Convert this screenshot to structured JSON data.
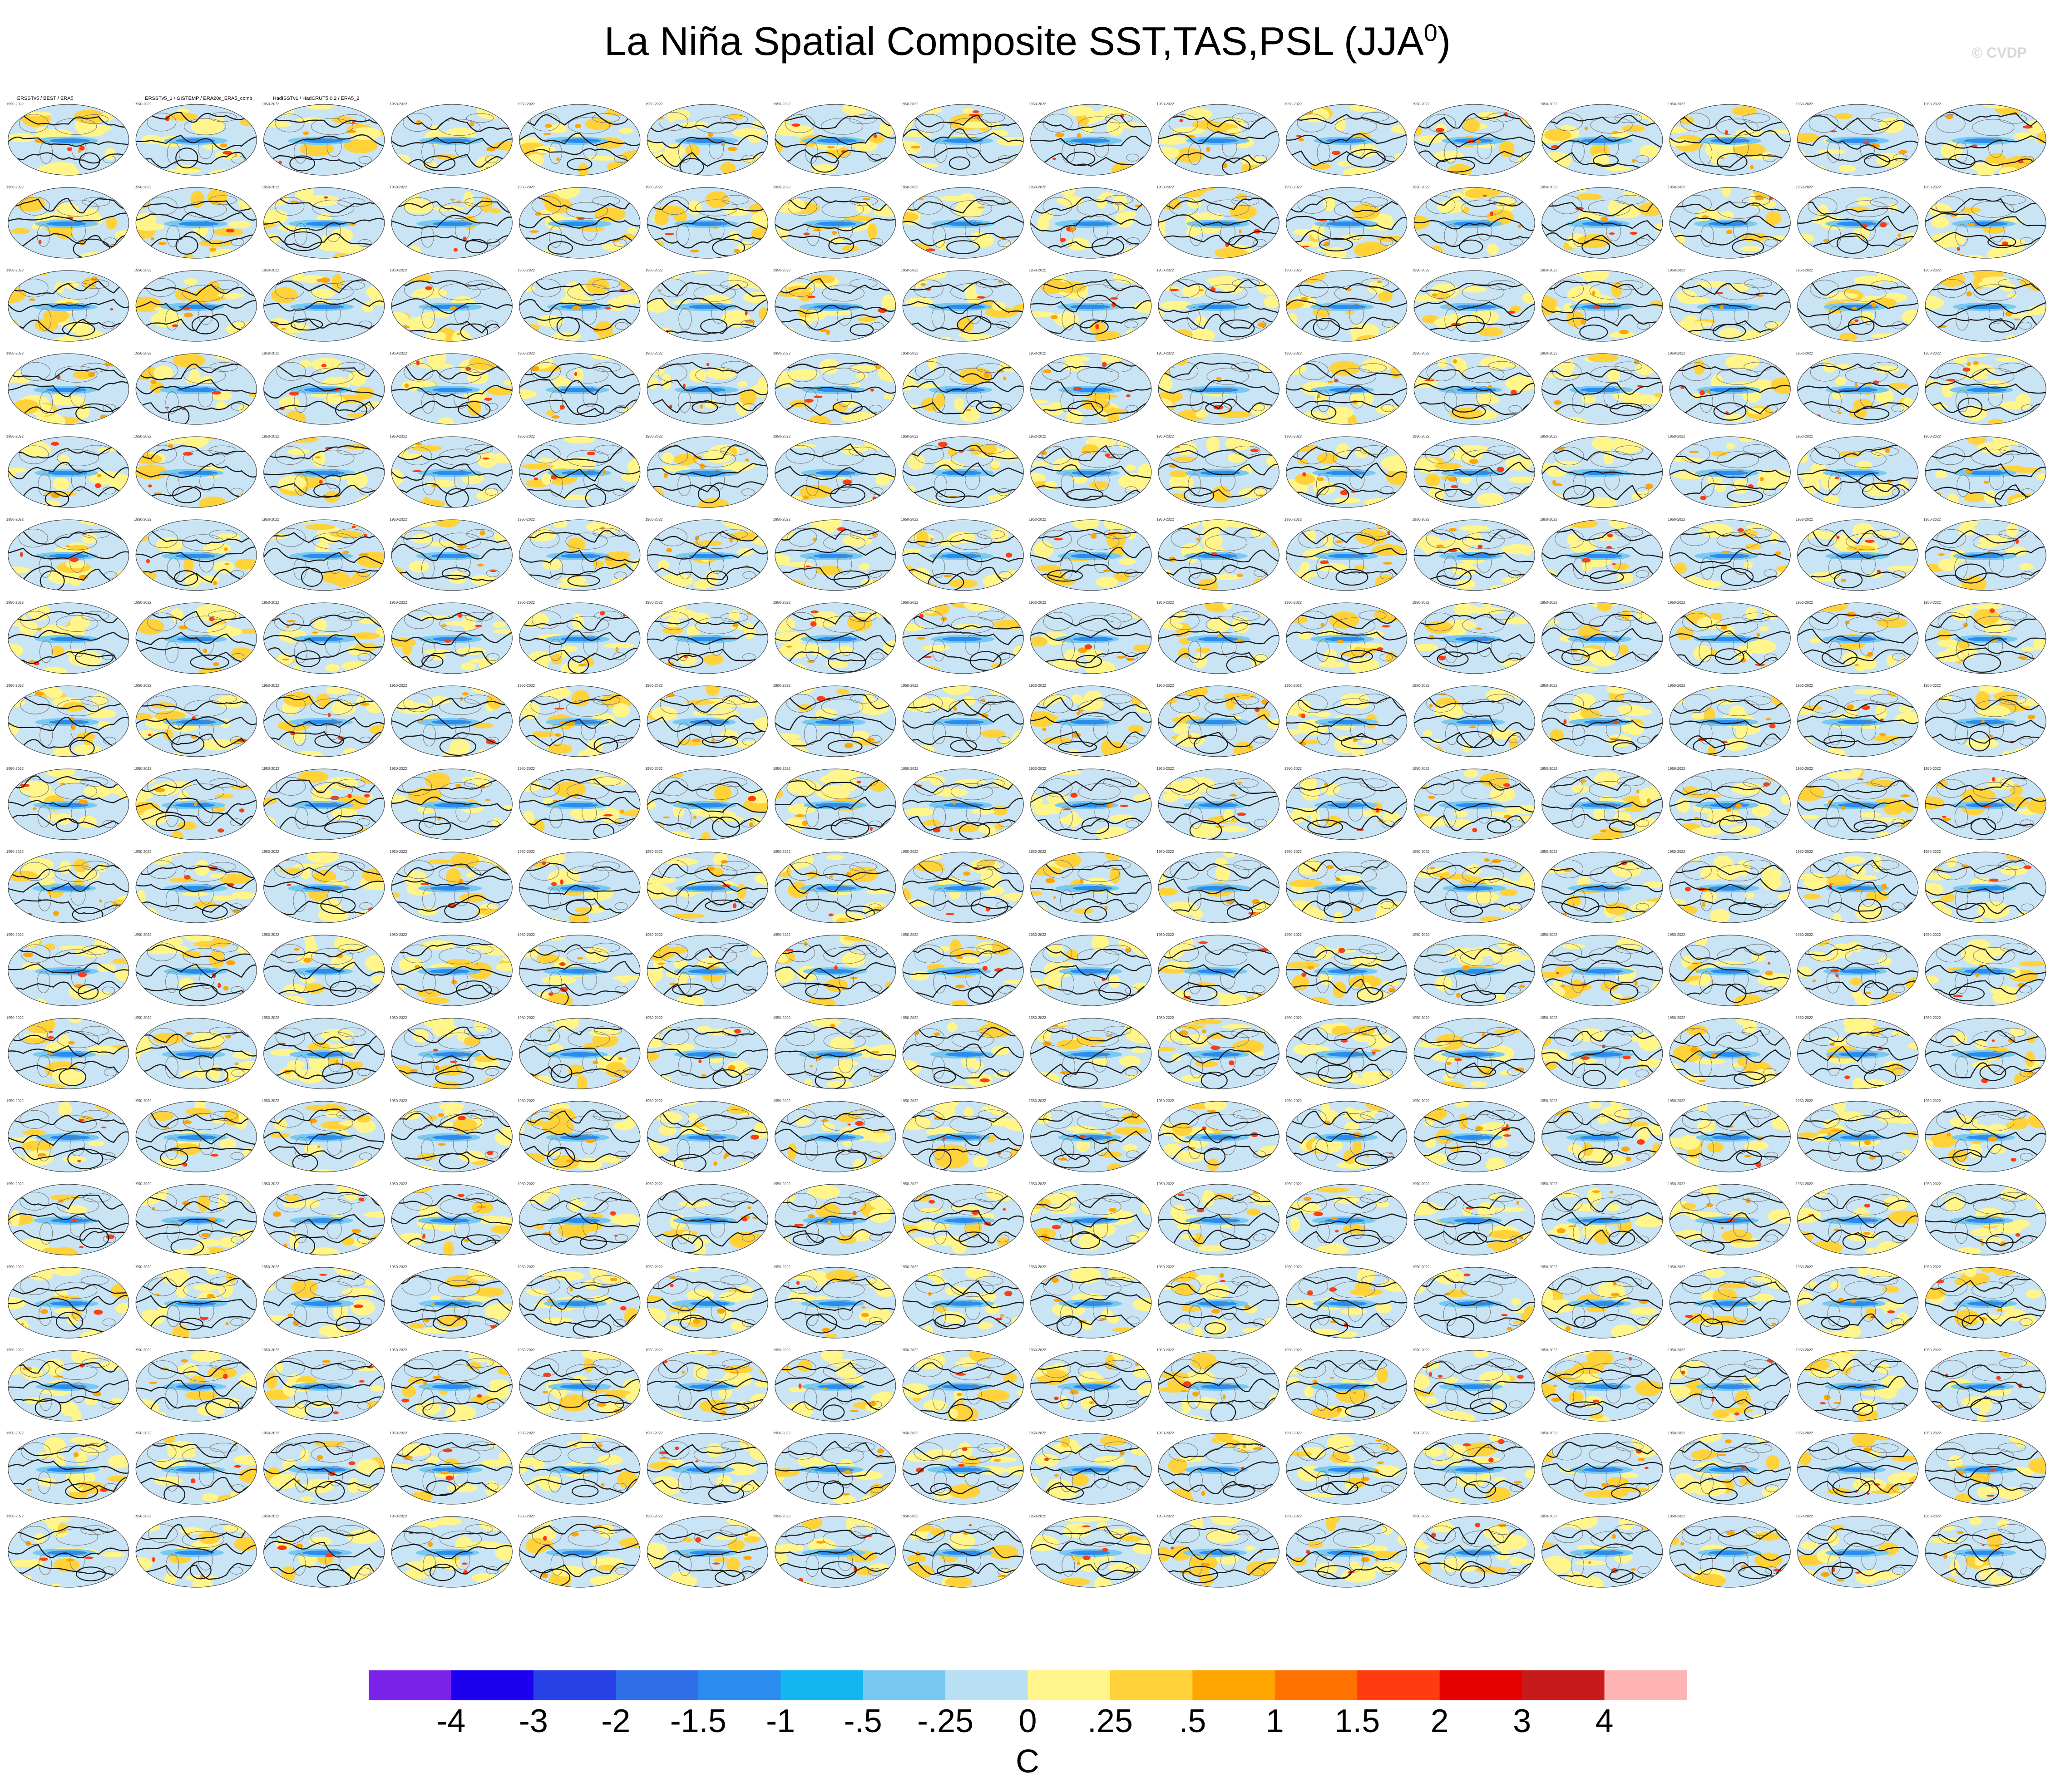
{
  "title": {
    "main": "La Niña Spatial Composite SST,TAS,PSL (JJA",
    "superscript": "0",
    "suffix": ")"
  },
  "watermark": "© CVDP",
  "chart_data": {
    "type": "heatmap",
    "layout": {
      "rows": 18,
      "columns": 16,
      "panel_count": 288,
      "projection": "global map"
    },
    "variables": [
      "SST",
      "TAS",
      "PSL"
    ],
    "season": "JJA",
    "observation_panel_titles": [
      "ERSSTv5 / BEST / ERA5",
      "ERSSTv5_1 / GISTEMP / ERA20c_ERA5_comb",
      "HadISSTv1 / HadCRUT5.0.2 / ERA5_2"
    ],
    "panel_period_label": "1950-2022",
    "colorbar": {
      "colors": [
        "#7b22e8",
        "#1e00f0",
        "#2741e6",
        "#2f6fe8",
        "#2b8cf0",
        "#14b6f2",
        "#78c9f2",
        "#b8dff4",
        "#fff58a",
        "#ffd23a",
        "#ffa500",
        "#ff7200",
        "#ff3c0f",
        "#e60000",
        "#c81a1a",
        "#ffb4b4"
      ],
      "tick_labels": [
        "-4",
        "-3",
        "-2",
        "-1.5",
        "-1",
        "-.5",
        "-.25",
        "0",
        ".25",
        ".5",
        "1",
        "1.5",
        "2",
        "3",
        "4"
      ],
      "unit": "C"
    }
  }
}
